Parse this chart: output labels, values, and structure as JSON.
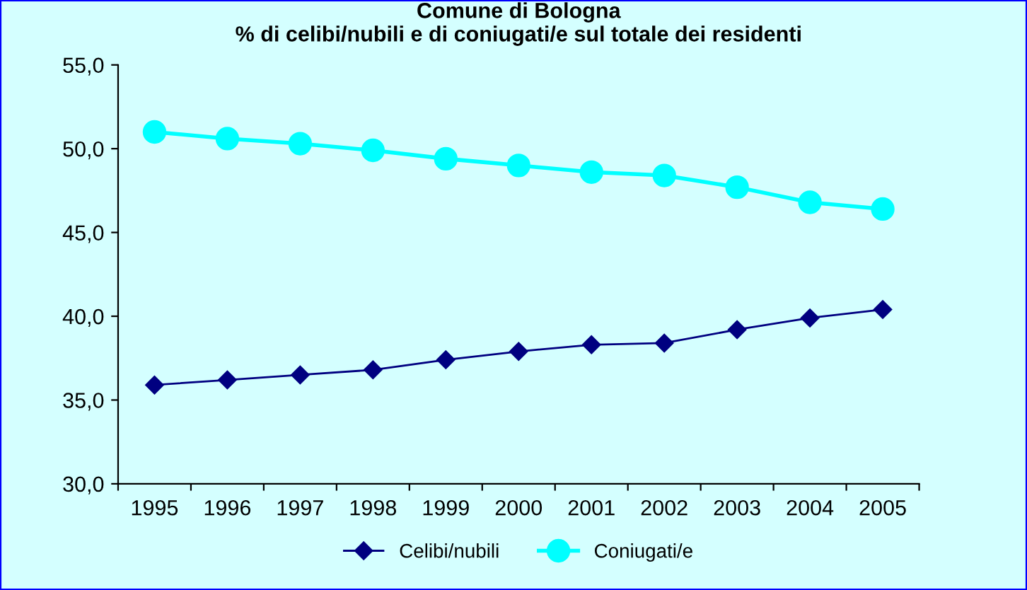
{
  "chart_data": {
    "type": "line",
    "title": "Comune di Bologna\n% di celibi/nubili e di coniugati/e sul totale dei residenti",
    "categories": [
      "1995",
      "1996",
      "1997",
      "1998",
      "1999",
      "2000",
      "2001",
      "2002",
      "2003",
      "2004",
      "2005"
    ],
    "series": [
      {
        "name": "Celibi/nubili",
        "color": "#000080",
        "marker": "diamond",
        "values": [
          35.9,
          36.2,
          36.5,
          36.8,
          37.4,
          37.9,
          38.3,
          38.4,
          39.2,
          39.9,
          40.4
        ]
      },
      {
        "name": "Coniugati/e",
        "color": "#00ffff",
        "marker": "circle",
        "values": [
          51.0,
          50.6,
          50.3,
          49.9,
          49.4,
          49.0,
          48.6,
          48.4,
          47.7,
          46.8,
          46.4
        ]
      }
    ],
    "ylim": [
      30,
      55
    ],
    "yticks": [
      {
        "value": 30,
        "label": "30,0"
      },
      {
        "value": 35,
        "label": "35,0"
      },
      {
        "value": 40,
        "label": "40,0"
      },
      {
        "value": 45,
        "label": "45,0"
      },
      {
        "value": 50,
        "label": "50,0"
      },
      {
        "value": 55,
        "label": "55,0"
      }
    ],
    "grid": false,
    "legend": "bottom"
  }
}
